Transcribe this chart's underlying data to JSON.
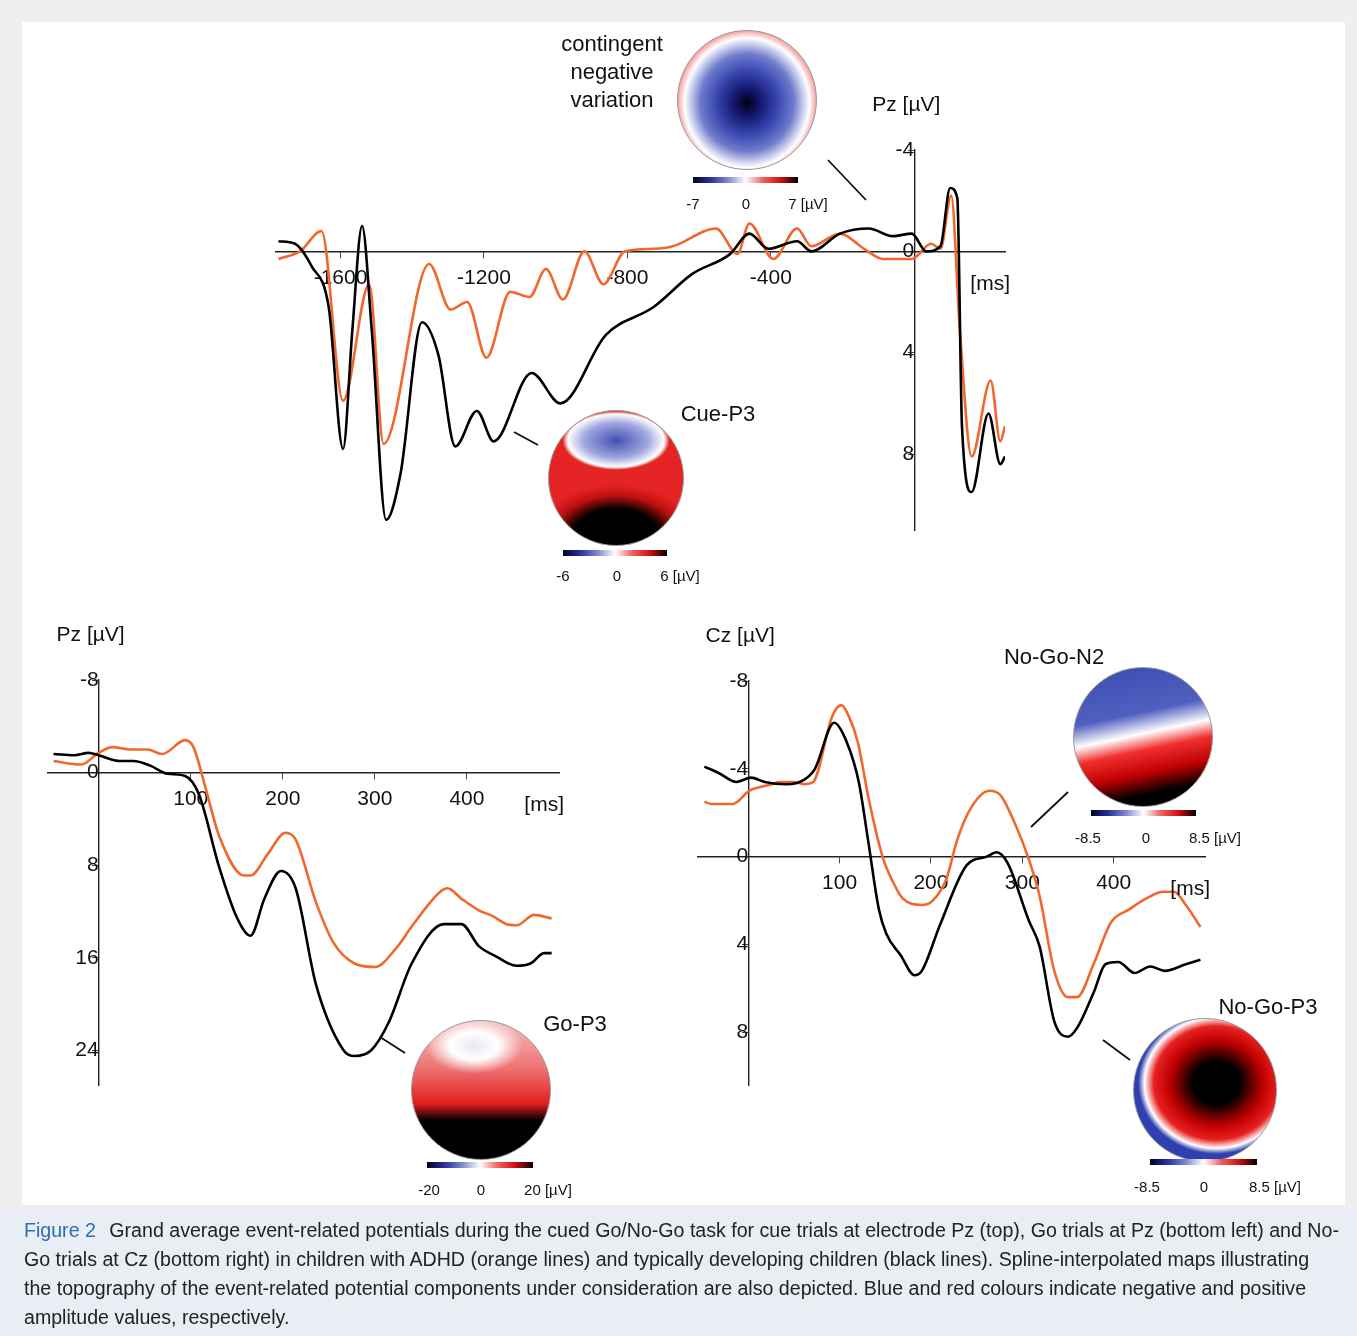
{
  "chart_data": [
    {
      "type": "line",
      "xlabel": "[ms]",
      "ylabel": "Pz [µV]",
      "xlim": [
        -1780,
        253
      ],
      "ylim": [
        11,
        -4
      ],
      "xticks": [
        -1600,
        -1200,
        -800,
        -400
      ],
      "yticks": [
        -4,
        0,
        4,
        8
      ],
      "grid": false,
      "legend": false,
      "annotations": [
        "contingent negative variation",
        "-7",
        "0",
        "7 [µV]",
        "Cue-P3",
        "-6",
        "0",
        "6 [µV]"
      ],
      "series": [
        {
          "color": "#000000",
          "x": [
            -1773,
            -1727,
            -1680,
            -1633,
            -1593,
            -1567,
            -1540,
            -1513,
            -1473,
            -1433,
            -1373,
            -1327,
            -1280,
            -1220,
            -1173,
            -1067,
            -987,
            -860,
            -727,
            -620,
            -513,
            -460,
            -407,
            -327,
            -287,
            -207,
            -127,
            -60,
            -7,
            33,
            73,
            100,
            120,
            133,
            160,
            207,
            240,
            253
          ],
          "values": [
            -0.4,
            -0.3,
            0.6,
            2.2,
            7.8,
            3.1,
            -1.0,
            3.1,
            10.6,
            8.8,
            2.8,
            4.1,
            7.7,
            6.3,
            7.5,
            4.8,
            6.0,
            3.3,
            2.2,
            0.9,
            0.1,
            -0.7,
            -0.1,
            -0.4,
            0,
            -0.7,
            -0.9,
            -0.6,
            -0.7,
            0,
            -0.2,
            -2.5,
            -2.1,
            6.9,
            9.5,
            6.4,
            8.4,
            8.1
          ]
        },
        {
          "color": "#f0682c",
          "x": [
            -1773,
            -1713,
            -1653,
            -1593,
            -1520,
            -1480,
            -1353,
            -1293,
            -1247,
            -1193,
            -1127,
            -1073,
            -1027,
            -980,
            -920,
            -867,
            -807,
            -727,
            -673,
            -553,
            -493,
            -460,
            -393,
            -327,
            -287,
            -207,
            -140,
            -87,
            -7,
            47,
            73,
            103,
            127,
            160,
            213,
            240,
            253
          ],
          "values": [
            0.3,
            0,
            -0.8,
            5.9,
            1.3,
            7.6,
            0.5,
            2.3,
            2.0,
            4.2,
            1.6,
            1.8,
            0.7,
            1.9,
            0,
            1.3,
            0,
            -0.1,
            -0.2,
            -0.9,
            0.1,
            -1.1,
            0.3,
            -0.9,
            -0.2,
            -0.7,
            -0.1,
            0.3,
            0.3,
            -0.3,
            -0.1,
            -2.2,
            3.1,
            8.1,
            5.1,
            7.5,
            6.9
          ]
        }
      ]
    },
    {
      "type": "line",
      "xlabel": "[ms]",
      "ylabel": "Pz [µV]",
      "xlim": [
        -55,
        500
      ],
      "ylim": [
        27,
        -8
      ],
      "xticks": [
        100,
        200,
        300,
        400
      ],
      "yticks": [
        -8,
        0,
        8,
        16,
        24
      ],
      "grid": false,
      "legend": false,
      "annotations": [
        "Go-P3",
        "-20",
        "0",
        "20 [µV]"
      ],
      "series": [
        {
          "color": "#000000",
          "x": [
            -49,
            -26,
            -11,
            0,
            23,
            38,
            56,
            75,
            94,
            109,
            131,
            150,
            165,
            180,
            198,
            214,
            236,
            266,
            278,
            296,
            315,
            340,
            375,
            394,
            413,
            432,
            454,
            469,
            484,
            492
          ],
          "values": [
            -1.6,
            -1.5,
            -1.7,
            -1.5,
            -1.0,
            -1.0,
            -0.6,
            0.1,
            0.3,
            1.9,
            8.2,
            12.5,
            14.1,
            10.9,
            8.5,
            10.0,
            18.3,
            24.0,
            24.5,
            24.0,
            21.6,
            16.5,
            13.1,
            13.1,
            15.0,
            15.9,
            16.7,
            16.5,
            15.6,
            15.6
          ]
        },
        {
          "color": "#f0682c",
          "x": [
            -49,
            -19,
            0,
            15,
            34,
            53,
            69,
            94,
            103,
            116,
            131,
            158,
            165,
            184,
            203,
            214,
            236,
            255,
            278,
            300,
            323,
            341,
            371,
            379,
            394,
            413,
            428,
            443,
            454,
            473,
            492
          ],
          "values": [
            -1.0,
            -0.7,
            -1.7,
            -2.2,
            -2.0,
            -2.0,
            -1.6,
            -2.8,
            -2.2,
            1.3,
            5.5,
            8.9,
            8.9,
            7.0,
            5.2,
            5.8,
            11.2,
            14.7,
            16.5,
            16.8,
            15.2,
            13.2,
            10.3,
            10.0,
            10.9,
            11.9,
            12.4,
            13.1,
            13.2,
            12.3,
            12.6
          ]
        }
      ]
    },
    {
      "type": "line",
      "xlabel": "[ms]",
      "ylabel": "Cz [µV]",
      "xlim": [
        -55,
        500
      ],
      "ylim": [
        10.4,
        -8
      ],
      "xticks": [
        100,
        200,
        300,
        400
      ],
      "yticks": [
        -8,
        -4,
        0,
        4,
        8
      ],
      "grid": false,
      "legend": false,
      "annotations": [
        "No-Go-N2",
        "-8.5",
        "0",
        "8.5 [µV]",
        "No-Go-P3",
        "-8.5",
        "0",
        "8.5 [µV]"
      ],
      "series": [
        {
          "color": "#000000",
          "x": [
            -48,
            -32,
            -13,
            3,
            18,
            42,
            61,
            73,
            94,
            107,
            121,
            131,
            143,
            151,
            167,
            182,
            190,
            210,
            239,
            261,
            272,
            284,
            307,
            319,
            335,
            350,
            360,
            378,
            391,
            405,
            423,
            440,
            456,
            479,
            495
          ],
          "values": [
            -4.1,
            -3.8,
            -3.4,
            -3.6,
            -3.4,
            -3.3,
            -3.5,
            -4.0,
            -6.1,
            -5.3,
            -3.4,
            -0.8,
            2.4,
            3.5,
            4.5,
            5.4,
            5.2,
            3.1,
            0.4,
            0,
            -0.2,
            0.3,
            2.9,
            4.1,
            7.5,
            8.2,
            7.8,
            6.2,
            4.9,
            4.8,
            5.3,
            5.0,
            5.2,
            4.9,
            4.7
          ]
        },
        {
          "color": "#f0682c",
          "x": [
            -48,
            -40,
            -17,
            1,
            7,
            26,
            34,
            50,
            61,
            71,
            92,
            102,
            110,
            120,
            132,
            147,
            159,
            169,
            190,
            202,
            217,
            229,
            245,
            264,
            276,
            292,
            307,
            319,
            335,
            350,
            360,
            378,
            397,
            417,
            436,
            454,
            466,
            479,
            495
          ],
          "values": [
            -2.5,
            -2.4,
            -2.4,
            -3.0,
            -3.1,
            -3.3,
            -3.4,
            -3.4,
            -3.3,
            -3.4,
            -6.4,
            -6.9,
            -6.4,
            -5.2,
            -2.6,
            0,
            1.2,
            1.9,
            2.2,
            2.0,
            1.0,
            -0.8,
            -2.3,
            -3.0,
            -2.8,
            -1.5,
            0.1,
            1.8,
            5.2,
            6.4,
            6.4,
            4.9,
            3.0,
            2.4,
            1.9,
            1.6,
            1.6,
            2.2,
            3.2
          ]
        }
      ]
    },
    {
      "type": "other",
      "title": "Figure 2",
      "annotations": [
        "Grand average event-related potentials during the cued Go/No-Go task for cue trials at electrode Pz (top), Go trials at Pz (bottom left) and No-Go trials at Cz (bottom right) in children with ADHD (orange lines) and typically developing children (black lines). Spline-interpolated maps illustrating the topography of the event-related potential components under consideration are also depicted. Blue and red colours indicate negative and positive amplitude values, respectively."
      ]
    }
  ]
}
